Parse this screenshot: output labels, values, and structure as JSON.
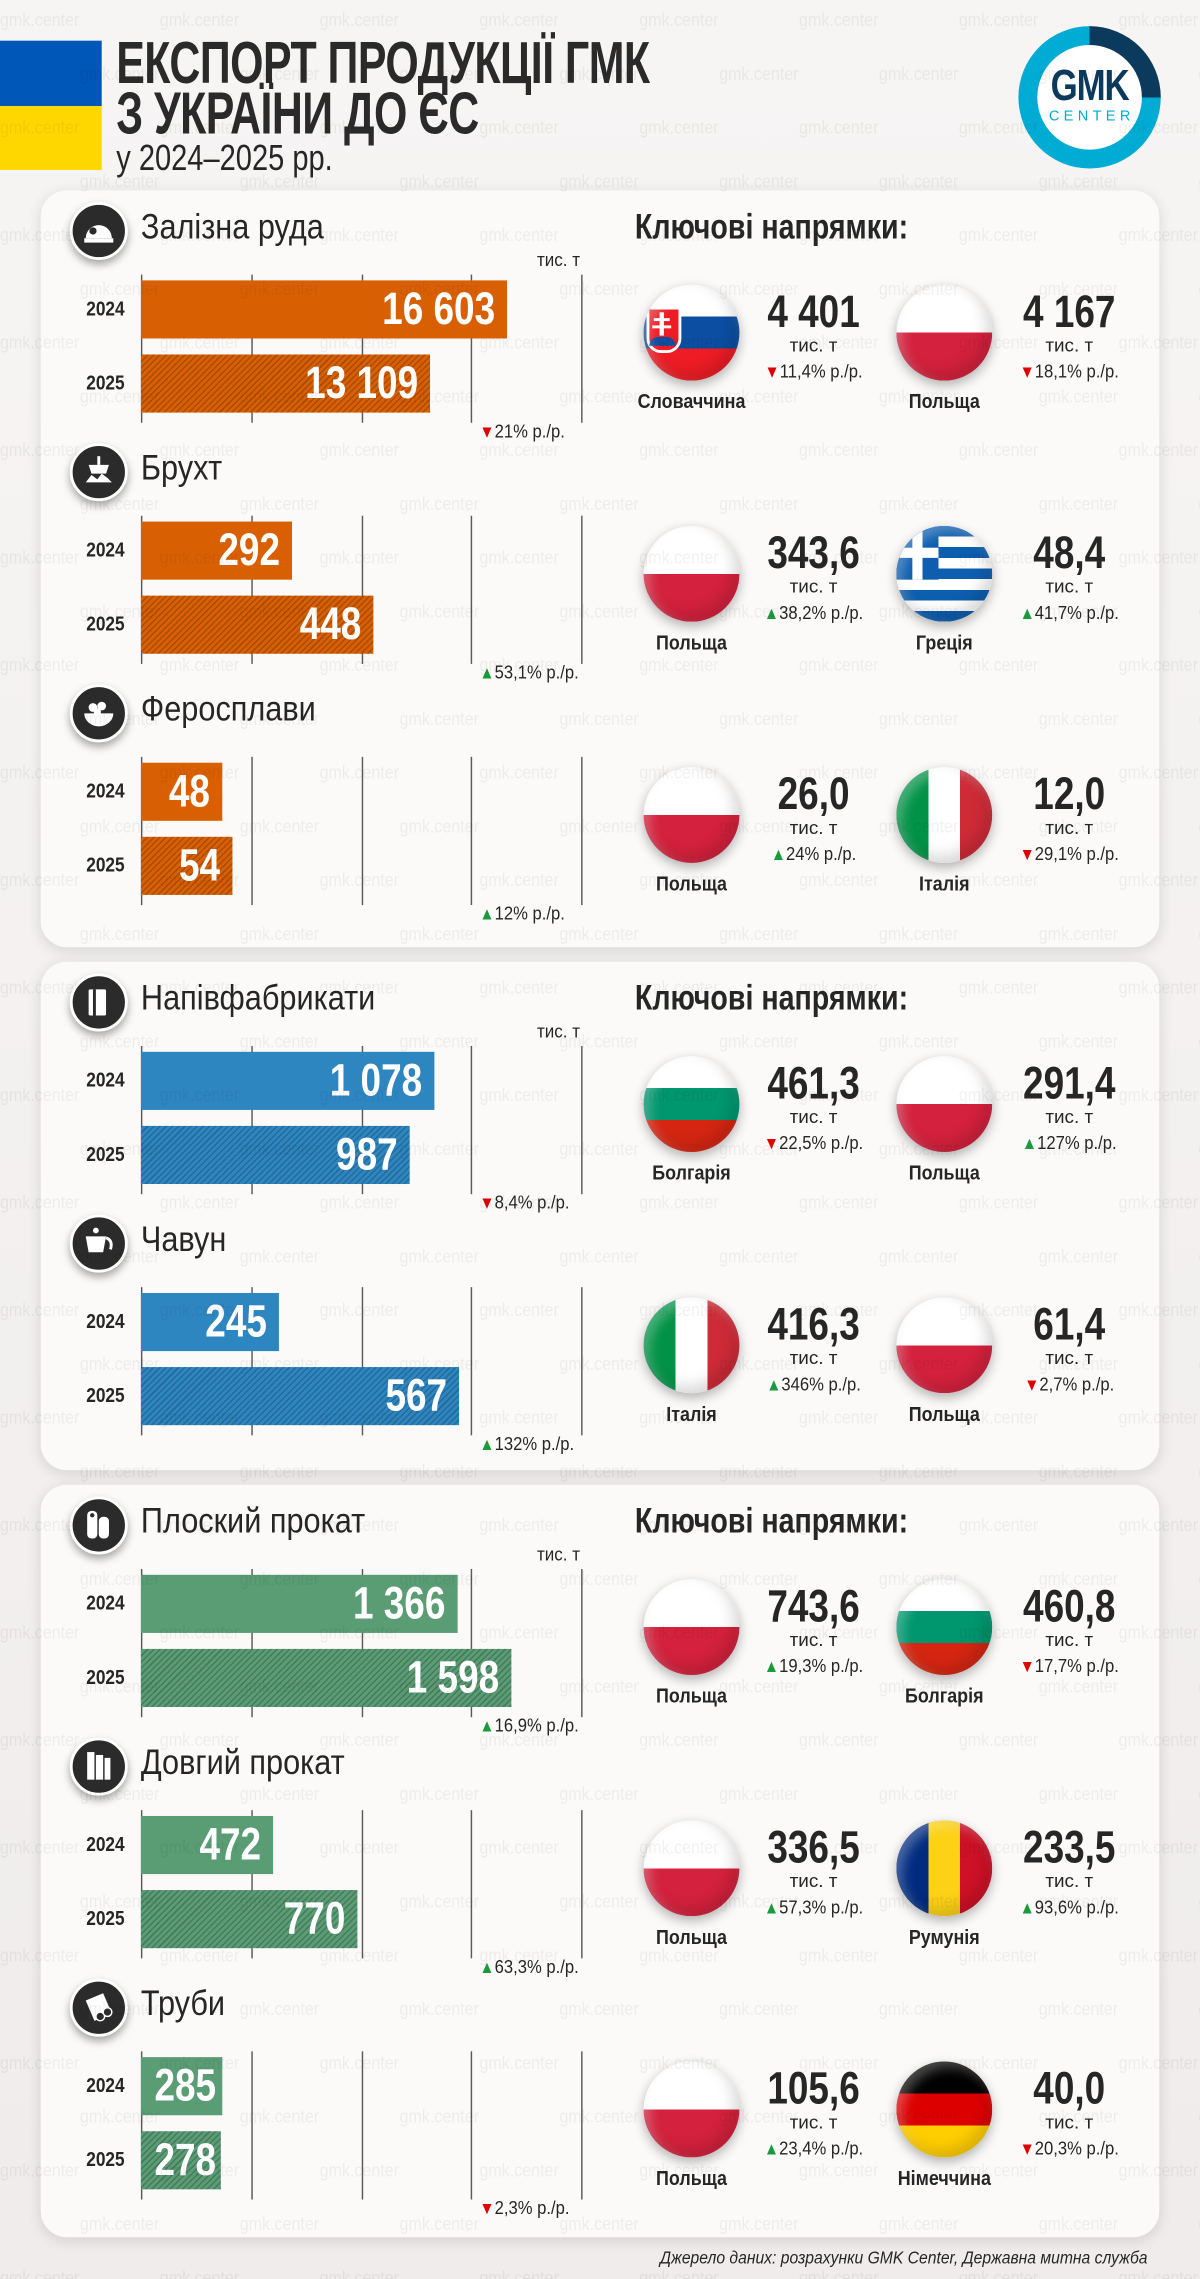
{
  "header": {
    "title_line1": "ЕКСПОРТ ПРОДУКЦІЇ ГМК",
    "title_line2": "З УКРАЇНИ ДО ЄС",
    "subtitle": "у 2024–2025 рр."
  },
  "logo": {
    "text": "GMK",
    "subtext": "CENTER"
  },
  "watermark": "gmk.center",
  "key_directions_label": "Ключові напрямки:",
  "unit": "тис. т",
  "colors": {
    "ukraine_blue": "#0057b7",
    "ukraine_yellow": "#ffd700",
    "up": "#1a9a3a",
    "down": "#e00000",
    "logo_navy": "#0b3a5c",
    "logo_cyan": "#00acd4"
  },
  "cards": [
    {
      "color": "#d96002",
      "products": [
        {
          "name": "Залізна руда",
          "icon": "iron-ore-helmet-icon",
          "axis_max": 20000,
          "bars": [
            {
              "year": "2024",
              "value": 16603,
              "label": "16 603"
            },
            {
              "year": "2025",
              "value": 13109,
              "label": "13 109"
            }
          ],
          "change": {
            "dir": "down",
            "text": "21% р./р."
          },
          "directions": [
            {
              "country": "Словаччина",
              "flag": "slovakia",
              "value": "4 401",
              "change": {
                "dir": "down",
                "text": "11,4% р./р."
              }
            },
            {
              "country": "Польща",
              "flag": "poland",
              "value": "4 167",
              "change": {
                "dir": "down",
                "text": "18,1% р./р."
              }
            }
          ]
        },
        {
          "name": "Брухт",
          "icon": "scrap-magnet-icon",
          "axis_max": 850,
          "bars": [
            {
              "year": "2024",
              "value": 292,
              "label": "292"
            },
            {
              "year": "2025",
              "value": 448,
              "label": "448"
            }
          ],
          "change": {
            "dir": "up",
            "text": "53,1% р./р."
          },
          "directions": [
            {
              "country": "Польща",
              "flag": "poland",
              "value": "343,6",
              "change": {
                "dir": "up",
                "text": "38,2% р./р."
              }
            },
            {
              "country": "Греція",
              "flag": "greece",
              "value": "48,4",
              "change": {
                "dir": "up",
                "text": "41,7% р./р."
              }
            }
          ]
        },
        {
          "name": "Феросплави",
          "icon": "ferroalloys-bowl-icon",
          "axis_max": 260,
          "bars": [
            {
              "year": "2024",
              "value": 48,
              "label": "48"
            },
            {
              "year": "2025",
              "value": 54,
              "label": "54"
            }
          ],
          "change": {
            "dir": "up",
            "text": "12% р./р."
          },
          "directions": [
            {
              "country": "Польща",
              "flag": "poland",
              "value": "26,0",
              "change": {
                "dir": "up",
                "text": "24% р./р."
              }
            },
            {
              "country": "Італія",
              "flag": "italy",
              "value": "12,0",
              "change": {
                "dir": "down",
                "text": "29,1% р./р."
              }
            }
          ]
        }
      ]
    },
    {
      "color": "#2e86c1",
      "products": [
        {
          "name": "Напівфабрикати",
          "icon": "billets-icon",
          "axis_max": 1620,
          "bars": [
            {
              "year": "2024",
              "value": 1078,
              "label": "1 078"
            },
            {
              "year": "2025",
              "value": 987,
              "label": "987"
            }
          ],
          "change": {
            "dir": "down",
            "text": "8,4% р./р."
          },
          "directions": [
            {
              "country": "Болгарія",
              "flag": "bulgaria",
              "value": "461,3",
              "change": {
                "dir": "down",
                "text": "22,5% р./р."
              }
            },
            {
              "country": "Польща",
              "flag": "poland",
              "value": "291,4",
              "change": {
                "dir": "up",
                "text": "127% р./р."
              }
            }
          ]
        },
        {
          "name": "Чавун",
          "icon": "pig-iron-ladle-icon",
          "axis_max": 785,
          "bars": [
            {
              "year": "2024",
              "value": 245,
              "label": "245"
            },
            {
              "year": "2025",
              "value": 567,
              "label": "567"
            }
          ],
          "change": {
            "dir": "up",
            "text": "132% р./р."
          },
          "directions": [
            {
              "country": "Італія",
              "flag": "italy",
              "value": "416,3",
              "change": {
                "dir": "up",
                "text": "346% р./р."
              }
            },
            {
              "country": "Польща",
              "flag": "poland",
              "value": "61,4",
              "change": {
                "dir": "down",
                "text": "2,7% р./р."
              }
            }
          ]
        }
      ]
    },
    {
      "color": "#5a9c74",
      "products": [
        {
          "name": "Плоский прокат",
          "icon": "flat-coils-icon",
          "axis_max": 1900,
          "bars": [
            {
              "year": "2024",
              "value": 1366,
              "label": "1 366"
            },
            {
              "year": "2025",
              "value": 1598,
              "label": "1 598"
            }
          ],
          "change": {
            "dir": "up",
            "text": "16,9% р./р."
          },
          "directions": [
            {
              "country": "Польща",
              "flag": "poland",
              "value": "743,6",
              "change": {
                "dir": "up",
                "text": "19,3% р./р."
              }
            },
            {
              "country": "Болгарія",
              "flag": "bulgaria",
              "value": "460,8",
              "change": {
                "dir": "down",
                "text": "17,7% р./р."
              }
            }
          ]
        },
        {
          "name": "Довгий прокат",
          "icon": "long-rebar-icon",
          "axis_max": 1570,
          "bars": [
            {
              "year": "2024",
              "value": 472,
              "label": "472"
            },
            {
              "year": "2025",
              "value": 770,
              "label": "770"
            }
          ],
          "change": {
            "dir": "up",
            "text": "63,3% р./р."
          },
          "directions": [
            {
              "country": "Польща",
              "flag": "poland",
              "value": "336,5",
              "change": {
                "dir": "up",
                "text": "57,3% р./р."
              }
            },
            {
              "country": "Румунія",
              "flag": "romania",
              "value": "233,5",
              "change": {
                "dir": "up",
                "text": "93,6% р./р."
              }
            }
          ]
        },
        {
          "name": "Труби",
          "icon": "pipes-icon",
          "axis_max": 1540,
          "bars": [
            {
              "year": "2024",
              "value": 285,
              "label": "285"
            },
            {
              "year": "2025",
              "value": 278,
              "label": "278"
            }
          ],
          "change": {
            "dir": "down",
            "text": "2,3% р./р."
          },
          "directions": [
            {
              "country": "Польща",
              "flag": "poland",
              "value": "105,6",
              "change": {
                "dir": "up",
                "text": "23,4% р./р."
              }
            },
            {
              "country": "Німеччина",
              "flag": "germany",
              "value": "40,0",
              "change": {
                "dir": "down",
                "text": "20,3% р./р."
              }
            }
          ]
        }
      ]
    }
  ],
  "source": "Джерело даних: розрахунки GMK Center, Державна митна служба"
}
